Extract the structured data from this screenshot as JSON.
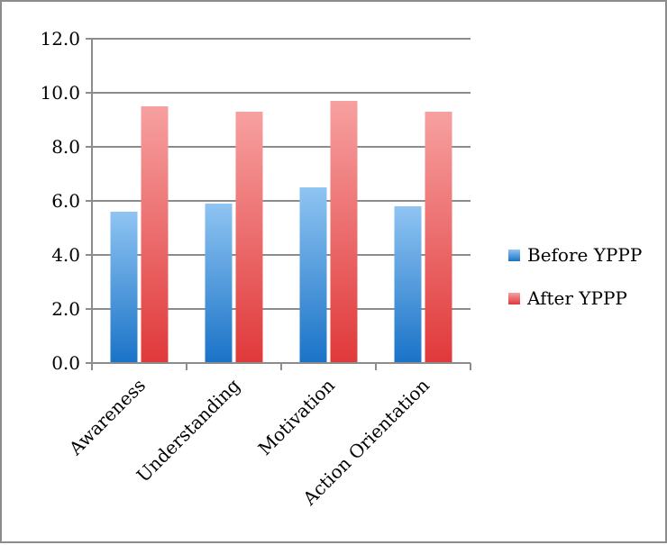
{
  "chart_data": {
    "type": "bar",
    "title": "",
    "xlabel": "",
    "ylabel": "",
    "categories": [
      "Awareness",
      "Understanding",
      "Motivation",
      "Action Orientation"
    ],
    "series": [
      {
        "name": "Before YPPP",
        "values": [
          5.6,
          5.9,
          6.5,
          5.8
        ],
        "color_top": "#8fc4f2",
        "color_bottom": "#1a73c7"
      },
      {
        "name": "After YPPP",
        "values": [
          9.5,
          9.3,
          9.7,
          9.3
        ],
        "color_top": "#f7a0a0",
        "color_bottom": "#e0393a"
      }
    ],
    "ylim": [
      0,
      12
    ],
    "yticks": [
      "0.0",
      "2.0",
      "4.0",
      "6.0",
      "8.0",
      "10.0",
      "12.0"
    ],
    "ytick_values": [
      0,
      2,
      4,
      6,
      8,
      10,
      12
    ],
    "grid": true,
    "legend_position": "right"
  }
}
